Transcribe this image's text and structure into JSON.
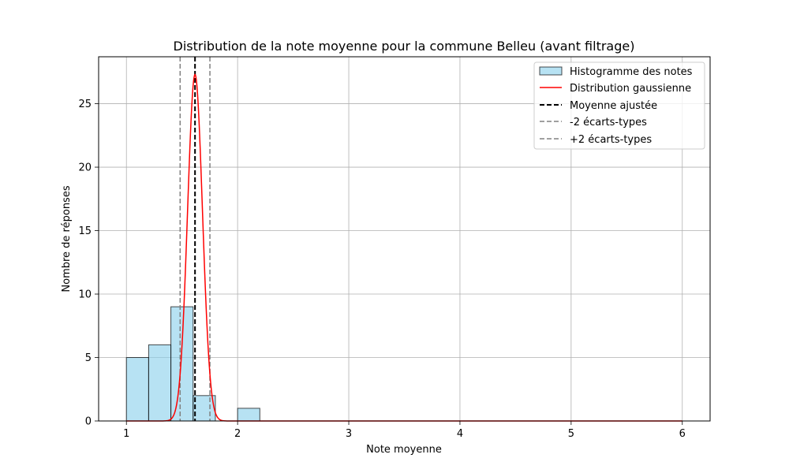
{
  "chart_data": {
    "type": "bar",
    "title": "Distribution de la note moyenne pour la commune Belleu (avant filtrage)",
    "xlabel": "Note moyenne",
    "ylabel": "Nombre de réponses",
    "xlim": [
      0.75,
      6.25
    ],
    "ylim": [
      0,
      28.7
    ],
    "xticks": [
      1,
      2,
      3,
      4,
      5,
      6
    ],
    "yticks": [
      0,
      5,
      10,
      15,
      20,
      25
    ],
    "grid": true,
    "legend_position": "top-right",
    "histogram": {
      "name": "Histogramme des notes",
      "color": "#87ceeb",
      "edge_color": "#000000",
      "bins": [
        {
          "x0": 1.0,
          "x1": 1.2,
          "count": 5
        },
        {
          "x0": 1.2,
          "x1": 1.4,
          "count": 6
        },
        {
          "x0": 1.4,
          "x1": 1.6,
          "count": 9
        },
        {
          "x0": 1.6,
          "x1": 1.8,
          "count": 2
        },
        {
          "x0": 1.8,
          "x1": 2.0,
          "count": 0
        },
        {
          "x0": 2.0,
          "x1": 2.2,
          "count": 1
        }
      ]
    },
    "gaussian": {
      "name": "Distribution gaussienne",
      "color": "#ff0000",
      "mean": 1.617,
      "std": 0.067,
      "peak": 27.3,
      "x_range": [
        1.0,
        6.0
      ]
    },
    "lines": [
      {
        "name": "Moyenne ajustée",
        "x": 1.617,
        "color": "#000000",
        "style": "dashed"
      },
      {
        "name": "-2 écarts-types",
        "x": 1.483,
        "color": "#808080",
        "style": "dashed"
      },
      {
        "name": "+2 écarts-types",
        "x": 1.751,
        "color": "#808080",
        "style": "dashed"
      }
    ]
  }
}
